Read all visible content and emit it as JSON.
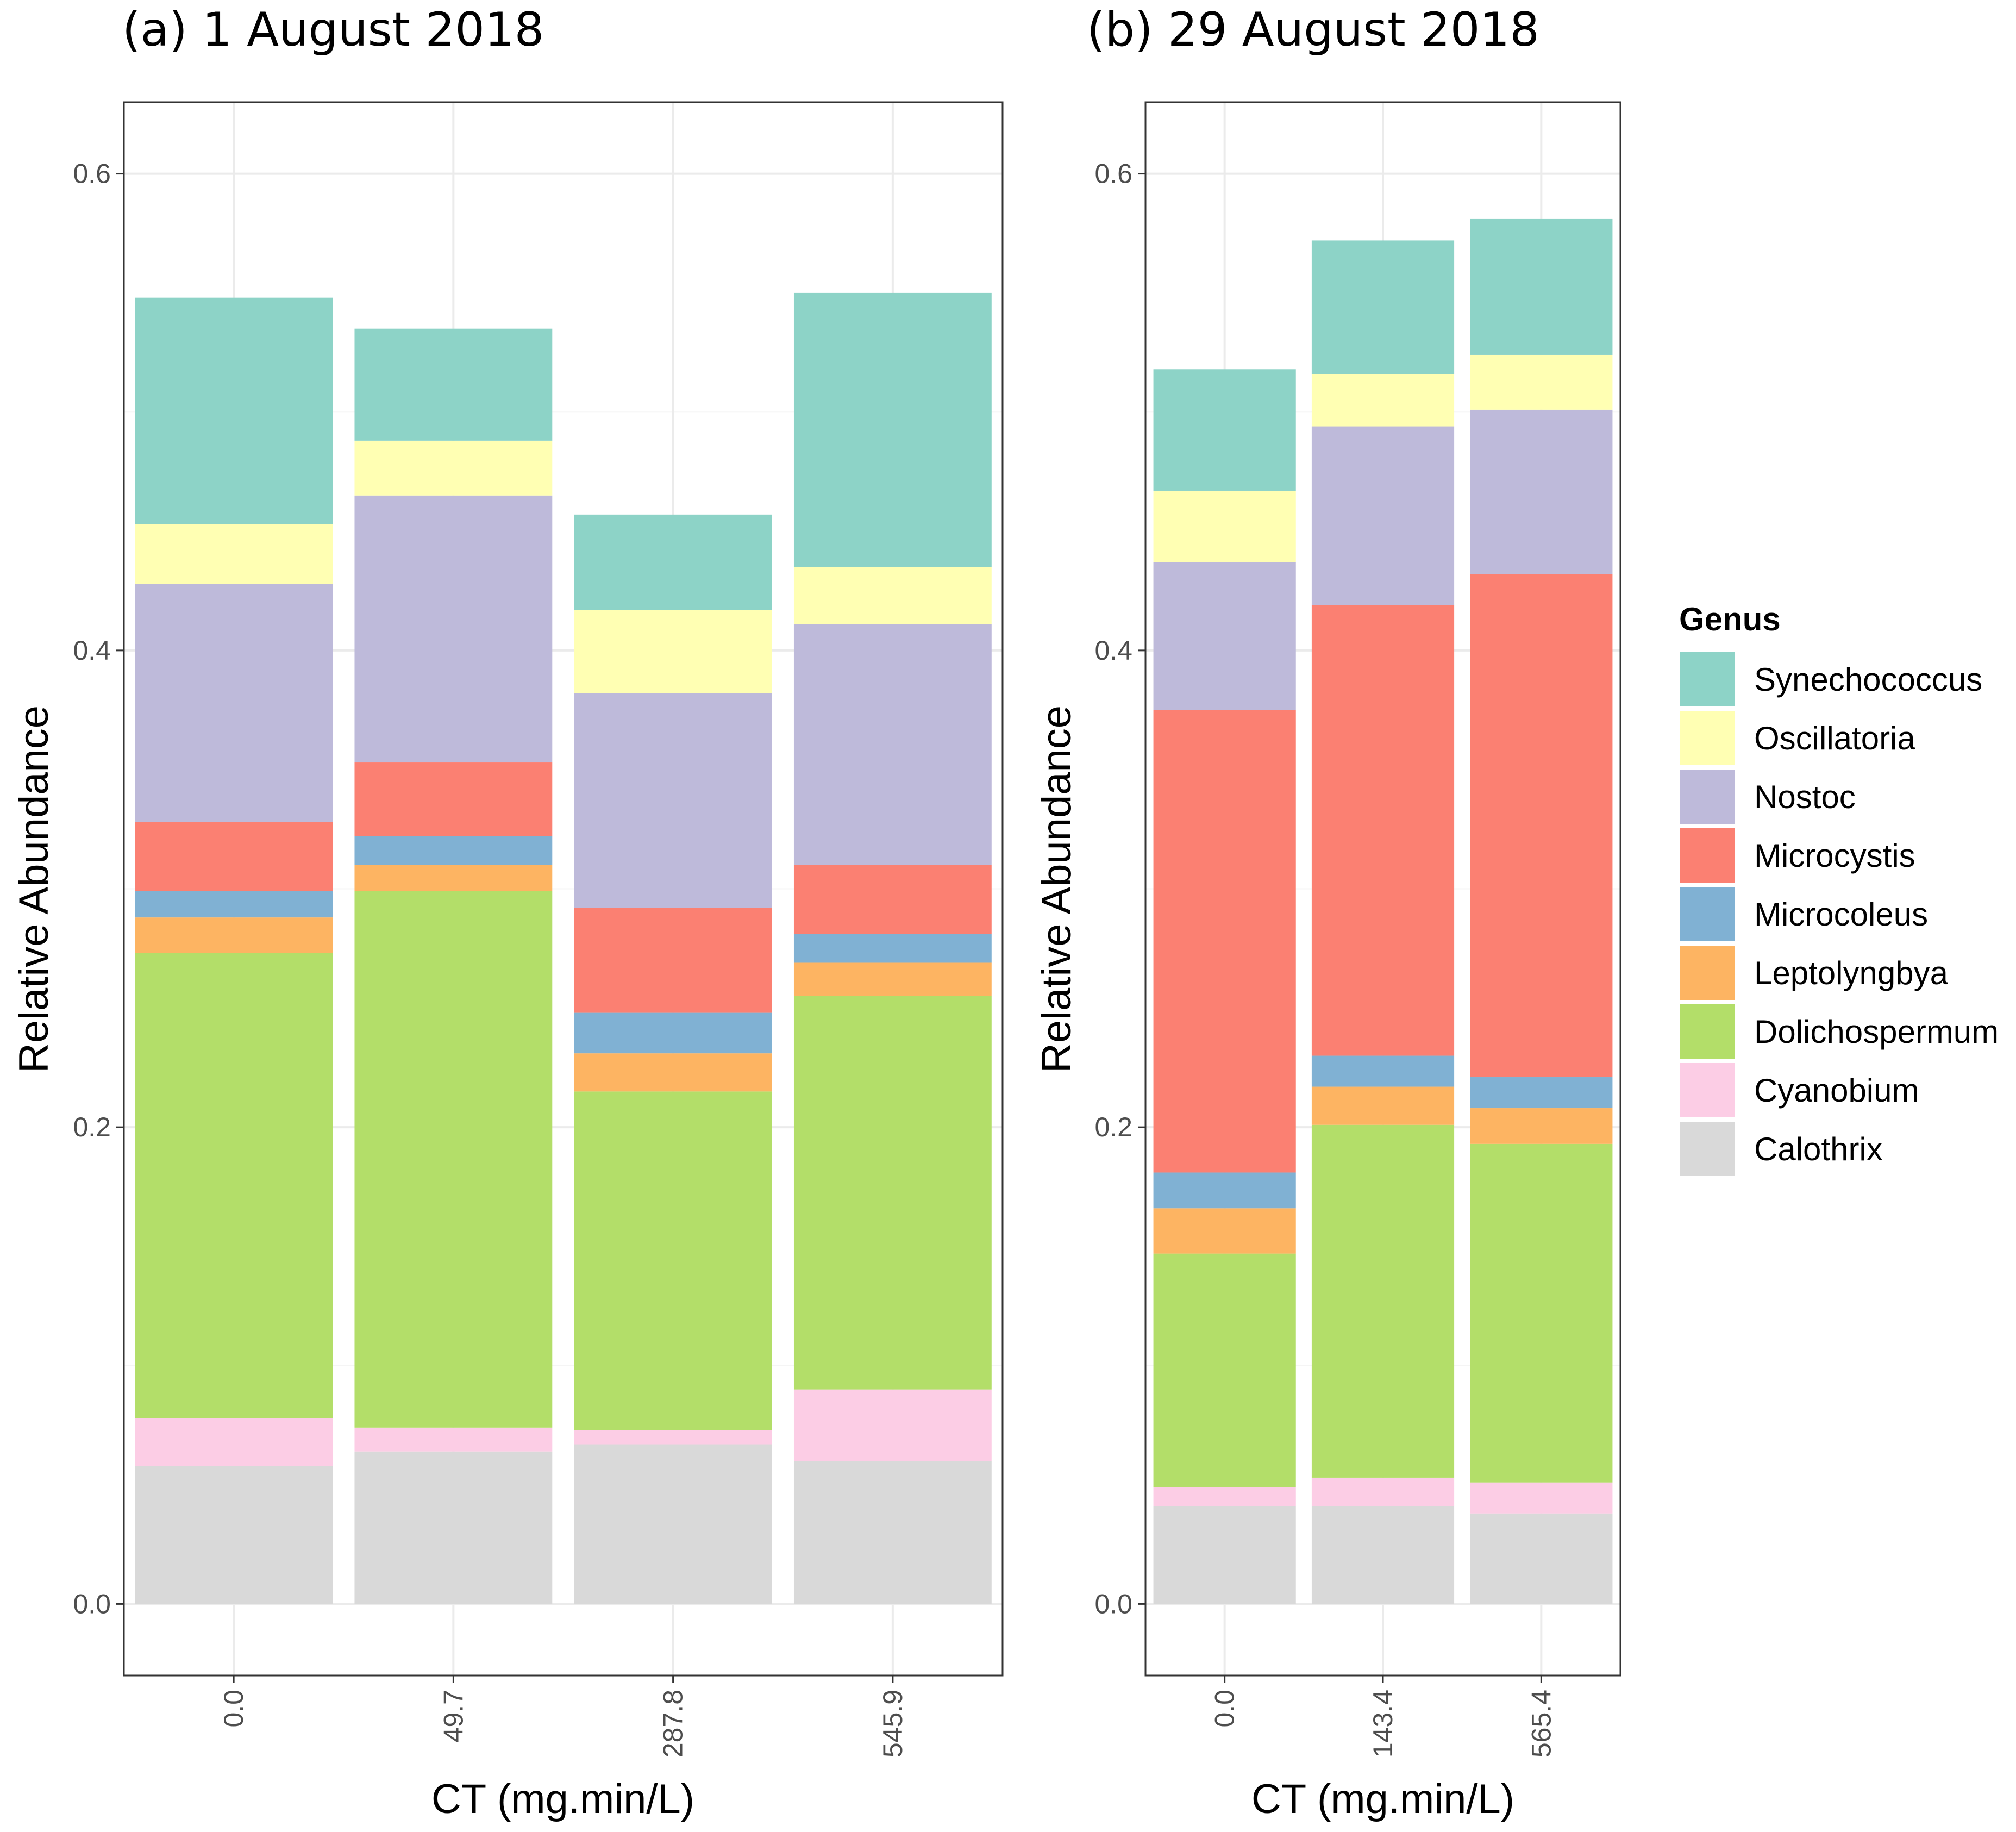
{
  "chart_data": {
    "type": "bar",
    "stacked": true,
    "legend": {
      "title": "Genus",
      "position": "right",
      "entries": [
        {
          "name": "Synechococcus",
          "color": "#8DD3C7"
        },
        {
          "name": "Oscillatoria",
          "color": "#FFFFB3"
        },
        {
          "name": "Nostoc",
          "color": "#BEBADA"
        },
        {
          "name": "Microcystis",
          "color": "#FB8072"
        },
        {
          "name": "Microcoleus",
          "color": "#80B1D3"
        },
        {
          "name": "Leptolyngbya",
          "color": "#FDB462"
        },
        {
          "name": "Dolichospermum",
          "color": "#B3DE69"
        },
        {
          "name": "Cyanobium",
          "color": "#FCCDE5"
        },
        {
          "name": "Calothrix",
          "color": "#D9D9D9"
        }
      ]
    },
    "stack_order_bottom_to_top": [
      "Calothrix",
      "Cyanobium",
      "Dolichospermum",
      "Leptolyngbya",
      "Microcoleus",
      "Microcystis",
      "Nostoc",
      "Oscillatoria",
      "Synechococcus"
    ],
    "panels": [
      {
        "title": "(a) 1 August 2018",
        "xlabel": "CT (mg.min/L)",
        "ylabel": "Relative Abundance",
        "ylim": [
          -0.03,
          0.63
        ],
        "yticks": [
          0.0,
          0.2,
          0.4,
          0.6
        ],
        "ytick_labels": [
          "0.0",
          "0.2",
          "0.4",
          "0.6"
        ],
        "grid": true,
        "categories": [
          "0.0",
          "49.7",
          "287.8",
          "545.9"
        ],
        "series": [
          {
            "name": "Calothrix",
            "values": [
              0.058,
              0.064,
              0.067,
              0.06
            ]
          },
          {
            "name": "Cyanobium",
            "values": [
              0.02,
              0.01,
              0.006,
              0.03
            ]
          },
          {
            "name": "Dolichospermum",
            "values": [
              0.195,
              0.225,
              0.142,
              0.165
            ]
          },
          {
            "name": "Leptolyngbya",
            "values": [
              0.015,
              0.011,
              0.016,
              0.014
            ]
          },
          {
            "name": "Microcoleus",
            "values": [
              0.011,
              0.012,
              0.017,
              0.012
            ]
          },
          {
            "name": "Microcystis",
            "values": [
              0.029,
              0.031,
              0.044,
              0.029
            ]
          },
          {
            "name": "Nostoc",
            "values": [
              0.1,
              0.112,
              0.09,
              0.101
            ]
          },
          {
            "name": "Oscillatoria",
            "values": [
              0.025,
              0.023,
              0.035,
              0.024
            ]
          },
          {
            "name": "Synechococcus",
            "values": [
              0.095,
              0.047,
              0.04,
              0.115
            ]
          }
        ]
      },
      {
        "title": "(b) 29 August 2018",
        "xlabel": "CT (mg.min/L)",
        "ylabel": "Relative Abundance",
        "ylim": [
          -0.03,
          0.63
        ],
        "yticks": [
          0.0,
          0.2,
          0.4,
          0.6
        ],
        "ytick_labels": [
          "0.0",
          "0.2",
          "0.4",
          "0.6"
        ],
        "grid": true,
        "categories": [
          "0.0",
          "143.4",
          "565.4"
        ],
        "series": [
          {
            "name": "Calothrix",
            "values": [
              0.041,
              0.041,
              0.038
            ]
          },
          {
            "name": "Cyanobium",
            "values": [
              0.008,
              0.012,
              0.013
            ]
          },
          {
            "name": "Dolichospermum",
            "values": [
              0.098,
              0.148,
              0.142
            ]
          },
          {
            "name": "Leptolyngbya",
            "values": [
              0.019,
              0.016,
              0.015
            ]
          },
          {
            "name": "Microcoleus",
            "values": [
              0.015,
              0.013,
              0.013
            ]
          },
          {
            "name": "Microcystis",
            "values": [
              0.194,
              0.189,
              0.211
            ]
          },
          {
            "name": "Nostoc",
            "values": [
              0.062,
              0.075,
              0.069
            ]
          },
          {
            "name": "Oscillatoria",
            "values": [
              0.03,
              0.022,
              0.023
            ]
          },
          {
            "name": "Synechococcus",
            "values": [
              0.051,
              0.056,
              0.057
            ]
          }
        ]
      }
    ]
  }
}
